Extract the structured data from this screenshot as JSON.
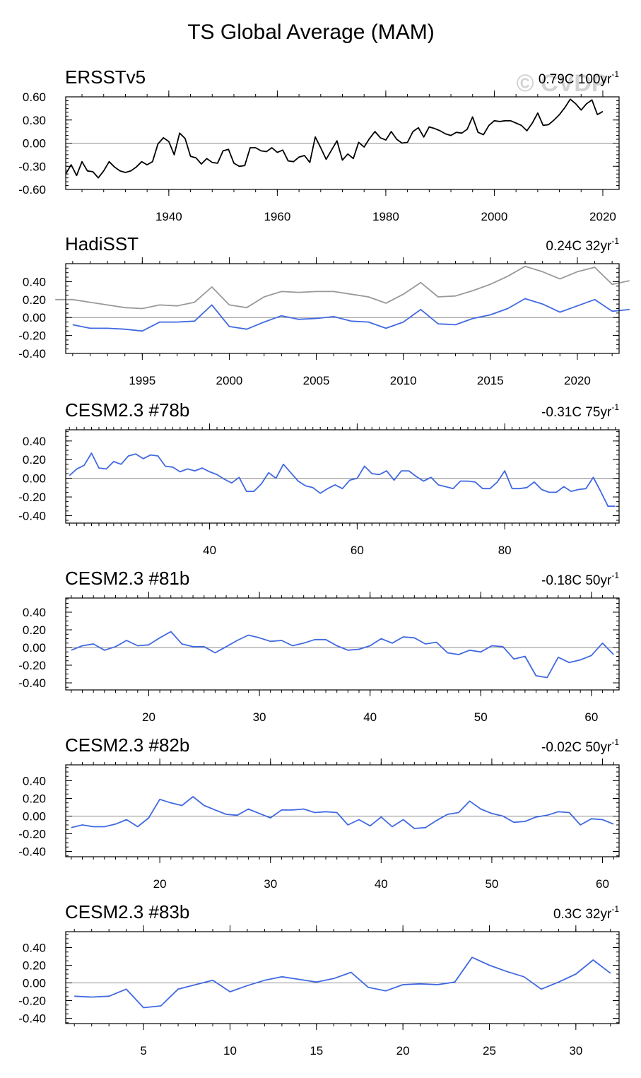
{
  "figure": {
    "title": "TS Global Average (MAM)",
    "watermark": "© CVDP",
    "colors": {
      "obs": "#000000",
      "hadi_obs": "#999999",
      "model": "#4169e1",
      "zero": "#8c8c8c"
    }
  },
  "chart_data": [
    {
      "type": "line",
      "title": "ERSSTv5",
      "trend_value": "0.79C",
      "trend_period": "100yr",
      "trend_exp": "-1",
      "xlim": [
        1921,
        2023
      ],
      "ylim": [
        -0.6,
        0.6
      ],
      "yticks": [
        -0.6,
        -0.3,
        0.0,
        0.3,
        0.6
      ],
      "ytick_labels": [
        "-0.60",
        "-0.30",
        "0.00",
        "0.30",
        "0.60"
      ],
      "xticks": [
        1940,
        1960,
        1980,
        2000,
        2020
      ],
      "xtick_labels": [
        "1940",
        "1960",
        "1980",
        "2000",
        "2020"
      ],
      "series": [
        {
          "name": "ERSSTv5",
          "color": "#000000",
          "x_start": 1921,
          "values": [
            -0.4,
            -0.28,
            -0.42,
            -0.24,
            -0.36,
            -0.37,
            -0.45,
            -0.36,
            -0.24,
            -0.31,
            -0.36,
            -0.38,
            -0.36,
            -0.31,
            -0.24,
            -0.28,
            -0.24,
            -0.01,
            0.07,
            0.02,
            -0.15,
            0.13,
            0.06,
            -0.17,
            -0.19,
            -0.27,
            -0.2,
            -0.25,
            -0.26,
            -0.1,
            -0.08,
            -0.26,
            -0.3,
            -0.29,
            -0.06,
            -0.06,
            -0.1,
            -0.11,
            -0.06,
            -0.12,
            -0.09,
            -0.23,
            -0.24,
            -0.18,
            -0.16,
            -0.25,
            0.08,
            -0.06,
            -0.21,
            -0.09,
            0.03,
            -0.22,
            -0.14,
            -0.2,
            0.01,
            -0.05,
            0.06,
            0.15,
            0.07,
            0.04,
            0.15,
            0.05,
            0.0,
            0.01,
            0.15,
            0.2,
            0.08,
            0.21,
            0.19,
            0.16,
            0.12,
            0.1,
            0.14,
            0.13,
            0.18,
            0.34,
            0.14,
            0.11,
            0.23,
            0.29,
            0.28,
            0.29,
            0.29,
            0.26,
            0.23,
            0.16,
            0.26,
            0.39,
            0.23,
            0.24,
            0.3,
            0.37,
            0.46,
            0.57,
            0.51,
            0.43,
            0.51,
            0.56,
            0.37,
            0.41
          ]
        }
      ]
    },
    {
      "type": "line",
      "title": "HadiSST",
      "trend_value": "0.24C",
      "trend_period": "32yr",
      "trend_exp": "-1",
      "xlim": [
        1990.6,
        2022.4
      ],
      "ylim": [
        -0.4,
        0.6
      ],
      "yticks": [
        -0.4,
        -0.2,
        0.0,
        0.2,
        0.4
      ],
      "ytick_labels": [
        "-0.40",
        "-0.20",
        "0.00",
        "0.20",
        "0.40"
      ],
      "xticks": [
        1995,
        2000,
        2005,
        2010,
        2015,
        2020
      ],
      "xtick_labels": [
        "1995",
        "2000",
        "2005",
        "2010",
        "2015",
        "2020"
      ],
      "series": [
        {
          "name": "ERSSTv5",
          "color": "#999999",
          "x_start": 1990,
          "values": [
            0.2,
            0.2,
            0.17,
            0.14,
            0.11,
            0.1,
            0.14,
            0.13,
            0.17,
            0.34,
            0.14,
            0.11,
            0.23,
            0.29,
            0.28,
            0.29,
            0.29,
            0.26,
            0.23,
            0.16,
            0.26,
            0.39,
            0.23,
            0.24,
            0.3,
            0.37,
            0.46,
            0.57,
            0.51,
            0.43,
            0.51,
            0.56,
            0.37,
            0.41
          ]
        },
        {
          "name": "HadiSST",
          "color": "#4169e1",
          "x_start": 1991,
          "values": [
            -0.08,
            -0.12,
            -0.12,
            -0.13,
            -0.15,
            -0.05,
            -0.05,
            -0.04,
            0.14,
            -0.1,
            -0.13,
            -0.05,
            0.02,
            -0.02,
            -0.01,
            0.01,
            -0.04,
            -0.05,
            -0.12,
            -0.05,
            0.09,
            -0.07,
            -0.08,
            -0.01,
            0.03,
            0.1,
            0.21,
            0.15,
            0.06,
            0.13,
            0.2,
            0.07,
            0.09
          ]
        }
      ]
    },
    {
      "type": "line",
      "title": "CESM2.3 #78b",
      "trend_value": "-0.31C",
      "trend_period": "75yr",
      "trend_exp": "-1",
      "xlim": [
        20.5,
        95.5
      ],
      "ylim": [
        -0.48,
        0.52
      ],
      "yticks": [
        -0.4,
        -0.2,
        0.0,
        0.2,
        0.4
      ],
      "ytick_labels": [
        "-0.40",
        "-0.20",
        "0.00",
        "0.20",
        "0.40"
      ],
      "xticks": [
        40,
        60,
        80
      ],
      "xtick_labels": [
        "40",
        "60",
        "80"
      ],
      "series": [
        {
          "name": "CESM2.3 #78b",
          "color": "#4169e1",
          "x_start": 21,
          "values": [
            0.03,
            0.1,
            0.14,
            0.27,
            0.11,
            0.1,
            0.18,
            0.15,
            0.24,
            0.26,
            0.21,
            0.25,
            0.24,
            0.13,
            0.12,
            0.07,
            0.1,
            0.08,
            0.11,
            0.07,
            0.04,
            -0.01,
            -0.05,
            0.01,
            -0.14,
            -0.14,
            -0.06,
            0.06,
            0.0,
            0.15,
            0.06,
            -0.03,
            -0.08,
            -0.1,
            -0.16,
            -0.11,
            -0.07,
            -0.11,
            -0.02,
            0.0,
            0.13,
            0.05,
            0.04,
            0.08,
            -0.02,
            0.08,
            0.08,
            0.02,
            -0.03,
            0.01,
            -0.07,
            -0.09,
            -0.11,
            -0.03,
            -0.03,
            -0.04,
            -0.11,
            -0.11,
            -0.04,
            0.08,
            -0.11,
            -0.11,
            -0.1,
            -0.04,
            -0.12,
            -0.15,
            -0.15,
            -0.09,
            -0.14,
            -0.12,
            -0.11,
            0.01,
            -0.14,
            -0.3,
            -0.3
          ]
        }
      ]
    },
    {
      "type": "line",
      "title": "CESM2.3 #81b",
      "trend_value": "-0.18C",
      "trend_period": "50yr",
      "trend_exp": "-1",
      "xlim": [
        12.5,
        62.5
      ],
      "ylim": [
        -0.48,
        0.56
      ],
      "yticks": [
        -0.4,
        -0.2,
        0.0,
        0.2,
        0.4
      ],
      "ytick_labels": [
        "-0.40",
        "-0.20",
        "0.00",
        "0.20",
        "0.40"
      ],
      "xticks": [
        20,
        30,
        40,
        50,
        60
      ],
      "xtick_labels": [
        "20",
        "30",
        "40",
        "50",
        "60"
      ],
      "series": [
        {
          "name": "CESM2.3 #81b",
          "color": "#4169e1",
          "x_start": 13,
          "values": [
            -0.03,
            0.02,
            0.04,
            -0.03,
            0.01,
            0.08,
            0.02,
            0.03,
            0.11,
            0.18,
            0.04,
            0.01,
            0.01,
            -0.06,
            0.01,
            0.08,
            0.14,
            0.11,
            0.07,
            0.08,
            0.02,
            0.05,
            0.09,
            0.09,
            0.02,
            -0.03,
            -0.02,
            0.02,
            0.1,
            0.05,
            0.12,
            0.11,
            0.04,
            0.06,
            -0.06,
            -0.08,
            -0.03,
            -0.05,
            0.02,
            0.01,
            -0.13,
            -0.1,
            -0.32,
            -0.34,
            -0.11,
            -0.17,
            -0.14,
            -0.09,
            0.05,
            -0.08
          ]
        }
      ]
    },
    {
      "type": "line",
      "title": "CESM2.3 #82b",
      "trend_value": "-0.02C",
      "trend_period": "50yr",
      "trend_exp": "-1",
      "xlim": [
        11.5,
        61.5
      ],
      "ylim": [
        -0.46,
        0.58
      ],
      "yticks": [
        -0.4,
        -0.2,
        0.0,
        0.2,
        0.4
      ],
      "ytick_labels": [
        "-0.40",
        "-0.20",
        "0.00",
        "0.20",
        "0.40"
      ],
      "xticks": [
        20,
        30,
        40,
        50,
        60
      ],
      "xtick_labels": [
        "20",
        "30",
        "40",
        "50",
        "60"
      ],
      "series": [
        {
          "name": "CESM2.3 #82b",
          "color": "#4169e1",
          "x_start": 12,
          "values": [
            -0.13,
            -0.1,
            -0.12,
            -0.12,
            -0.09,
            -0.04,
            -0.12,
            -0.02,
            0.19,
            0.15,
            0.12,
            0.22,
            0.12,
            0.07,
            0.02,
            0.01,
            0.08,
            0.03,
            -0.02,
            0.07,
            0.07,
            0.08,
            0.04,
            0.05,
            0.04,
            -0.1,
            -0.04,
            -0.11,
            -0.01,
            -0.12,
            -0.04,
            -0.14,
            -0.13,
            -0.05,
            0.02,
            0.04,
            0.17,
            0.08,
            0.03,
            0.0,
            -0.07,
            -0.06,
            -0.01,
            0.01,
            0.05,
            0.04,
            -0.1,
            -0.03,
            -0.04,
            -0.09
          ]
        }
      ]
    },
    {
      "type": "line",
      "title": "CESM2.3 #83b",
      "trend_value": "0.3C",
      "trend_period": "32yr",
      "trend_exp": "-1",
      "xlim": [
        0.5,
        32.5
      ],
      "ylim": [
        -0.46,
        0.58
      ],
      "yticks": [
        -0.4,
        -0.2,
        0.0,
        0.2,
        0.4
      ],
      "ytick_labels": [
        "-0.40",
        "-0.20",
        "0.00",
        "0.20",
        "0.40"
      ],
      "xticks": [
        5,
        10,
        15,
        20,
        25,
        30
      ],
      "xtick_labels": [
        "5",
        "10",
        "15",
        "20",
        "25",
        "30"
      ],
      "series": [
        {
          "name": "CESM2.3 #83b",
          "color": "#4169e1",
          "x_start": 1,
          "values": [
            -0.15,
            -0.16,
            -0.15,
            -0.07,
            -0.28,
            -0.26,
            -0.07,
            -0.02,
            0.03,
            -0.1,
            -0.03,
            0.03,
            0.07,
            0.04,
            0.01,
            0.05,
            0.12,
            -0.05,
            -0.09,
            -0.02,
            -0.01,
            -0.02,
            0.01,
            0.29,
            0.2,
            0.13,
            0.07,
            -0.07,
            0.01,
            0.1,
            0.26,
            0.11
          ]
        }
      ]
    }
  ]
}
